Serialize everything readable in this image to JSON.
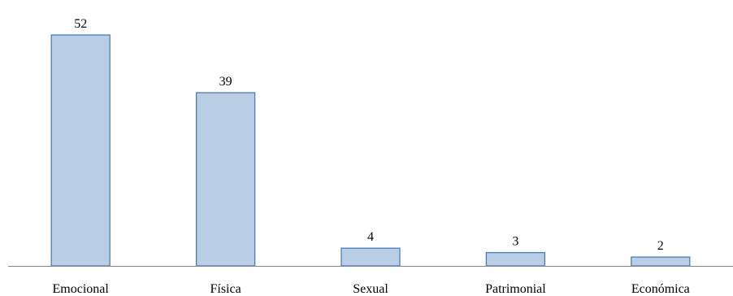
{
  "chart_data": {
    "type": "bar",
    "categories": [
      "Emocional",
      "Física",
      "Sexual",
      "Patrimonial",
      "Económica"
    ],
    "values": [
      52,
      39,
      4,
      3,
      2
    ],
    "value_labels": [
      "52",
      "39",
      "4",
      "3",
      "2"
    ],
    "title": "",
    "xlabel": "",
    "ylabel": "",
    "ylim": [
      0,
      52
    ],
    "grid": false,
    "y_axis_visible": false,
    "data_labels": true,
    "colors": {
      "bar_fill": "#b9cde5",
      "bar_stroke": "#4a7ebb",
      "axis": "#868686",
      "text": "#000000"
    }
  }
}
